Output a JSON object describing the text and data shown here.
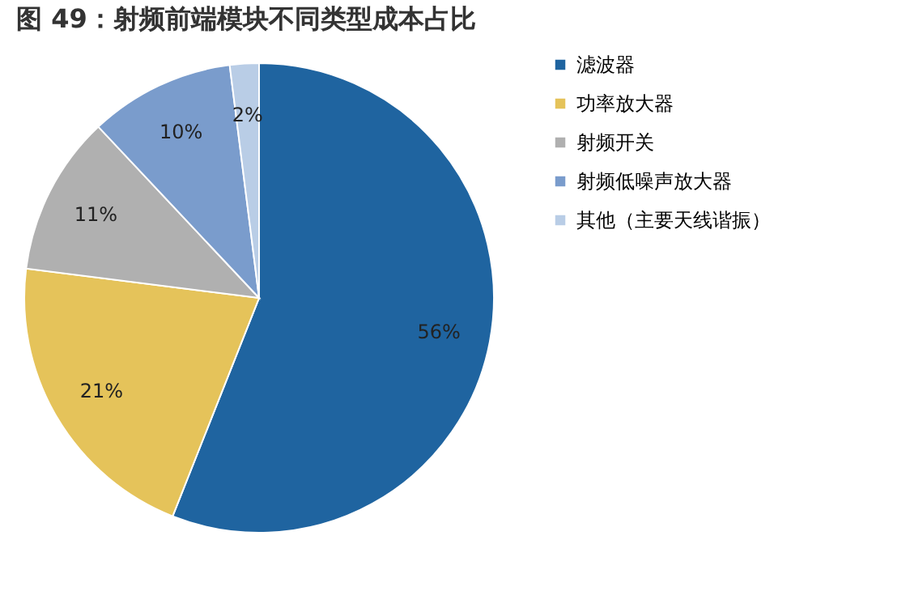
{
  "chart_data": {
    "type": "pie",
    "title": "图 49：射频前端模块不同类型成本占比",
    "categories": [
      "滤波器",
      "功率放大器",
      "射频开关",
      "射频低噪声放大器",
      "其他（主要天线谐振）"
    ],
    "values": [
      56,
      21,
      11,
      10,
      2
    ],
    "colors": [
      "#1f64a0",
      "#e5c35a",
      "#b0b0b0",
      "#7a9ccc",
      "#b9cde6"
    ],
    "value_labels": [
      "56%",
      "21%",
      "11%",
      "10%",
      "2%"
    ],
    "legend": "right"
  }
}
